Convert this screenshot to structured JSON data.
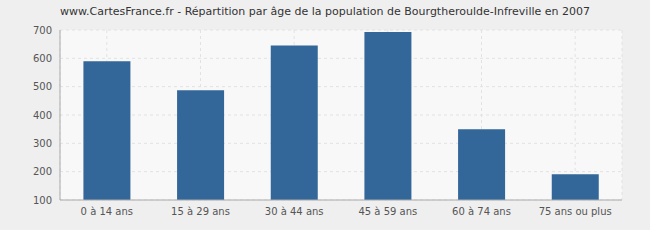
{
  "chart_data": {
    "type": "bar",
    "title": "www.CartesFrance.fr - Répartition par âge de la population de Bourgtheroulde-Infreville en 2007",
    "categories": [
      "0 à 14 ans",
      "15 à 29 ans",
      "30 à 44 ans",
      "45 à 59 ans",
      "60 à 74 ans",
      "75 ans ou plus"
    ],
    "values": [
      590,
      487,
      645,
      693,
      350,
      191
    ],
    "color": "#336699",
    "ylim": [
      100,
      700
    ],
    "yticks": [
      100,
      200,
      300,
      400,
      500,
      600,
      700
    ],
    "grid": true
  }
}
